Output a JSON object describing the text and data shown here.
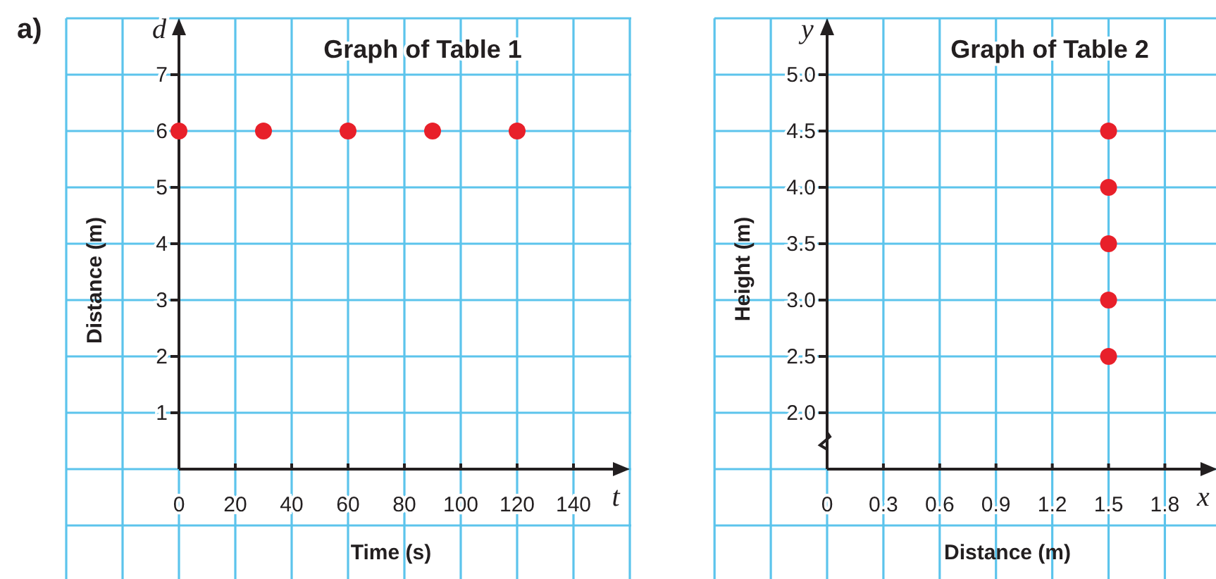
{
  "chart_data": [
    {
      "type": "scatter",
      "title": "Graph of Table 1",
      "xlabel": "Time (s)",
      "ylabel": "Distance (m)",
      "x": [
        0,
        30,
        60,
        90,
        120
      ],
      "series": [
        {
          "color": "#e8202a",
          "values": [
            6,
            6,
            6,
            6,
            6
          ]
        }
      ],
      "xlim": [
        0,
        158
      ],
      "ylim": [
        0,
        7.9
      ],
      "xticks": [
        0,
        20,
        40,
        60,
        80,
        100,
        120,
        140
      ],
      "yticks": [
        1,
        2,
        3,
        4,
        5,
        6,
        7
      ],
      "grid": true,
      "marker": "circle",
      "annotations": [
        "a)",
        "d",
        "t"
      ]
    },
    {
      "type": "scatter",
      "title": "Graph of Table 2",
      "xlabel": "Distance (m)",
      "ylabel": "Height (m)",
      "x": [
        1.5,
        1.5,
        1.5,
        1.5,
        1.5
      ],
      "series": [
        {
          "color": "#e8202a",
          "values": [
            2.5,
            3.0,
            3.5,
            4.0,
            4.5
          ]
        }
      ],
      "xlim": [
        0,
        2.05
      ],
      "ylim": [
        1.5,
        5.45
      ],
      "xticks": [
        0,
        0.3,
        0.6,
        0.9,
        1.2,
        1.5,
        1.8
      ],
      "yticks": [
        {
          "value": 2,
          "label": "2.0"
        },
        {
          "value": 2.5,
          "label": "2.5"
        },
        {
          "value": 3,
          "label": "3.0"
        },
        {
          "value": 3.5,
          "label": "3.5"
        },
        {
          "value": 4,
          "label": "4.0"
        },
        {
          "value": 4.5,
          "label": "4.5"
        },
        {
          "value": 5,
          "label": "5.0"
        }
      ],
      "grid": true,
      "marker": "circle",
      "annotations": [
        "y",
        "x"
      ]
    }
  ]
}
